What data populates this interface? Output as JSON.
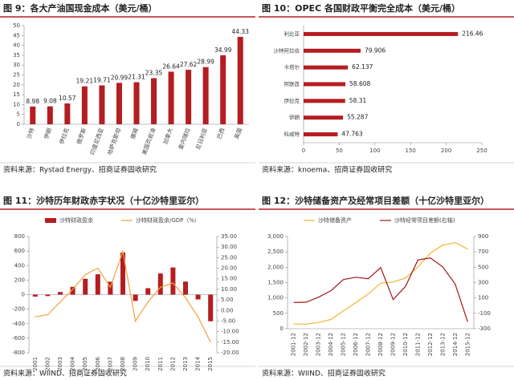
{
  "chart_data": [
    {
      "type": "bar",
      "title": "图 9：各大产油国现金成本（美元/桶）",
      "source": "资料来源：Rystad Energy、招商证券固收研究",
      "categories": [
        "沙特",
        "伊朗",
        "伊拉克",
        "俄罗斯",
        "印度尼西亚",
        "哈萨克斯坦",
        "挪威",
        "美国页岩油",
        "加拿大",
        "委内瑞拉",
        "尼日利亚",
        "巴西",
        "英国"
      ],
      "values": [
        8.98,
        9.08,
        10.57,
        19.21,
        19.71,
        20.99,
        21.31,
        23.35,
        26.64,
        27.62,
        28.99,
        34.99,
        44.33
      ],
      "color": "#b51d22",
      "ylim": [
        0,
        50
      ],
      "yticks": [
        0,
        5,
        10,
        15,
        20,
        25,
        30,
        35,
        40,
        45,
        50
      ],
      "grid": false
    },
    {
      "type": "bar",
      "horizontal": true,
      "title": "图 10：OPEC 各国财政平衡完全成本（美元/桶）",
      "source": "资料来源：knoema、招商证券固收研究",
      "categories": [
        "利比亚",
        "沙特阿拉伯",
        "卡塔尔",
        "阿联酋",
        "伊拉克",
        "伊朗",
        "科威特"
      ],
      "values": [
        216.46,
        79.906,
        62.137,
        58.608,
        58.31,
        55.287,
        47.763
      ],
      "color": "#b51d22",
      "xlim": [
        0,
        250
      ],
      "xticks": [
        0,
        50,
        100,
        150,
        200,
        250
      ],
      "grid": false
    },
    {
      "type": "combo",
      "title": "图 11：沙特历年财政赤字状况（十亿沙特里亚尔）",
      "source": "资料来源：WIIND、招商证券固收研究",
      "categories": [
        "2001",
        "2002",
        "2003",
        "2004",
        "2005",
        "2006",
        "2007",
        "2008",
        "2009",
        "2010",
        "2011",
        "2012",
        "2013",
        "2014",
        "2015"
      ],
      "series": [
        {
          "name": "沙特财政盈余",
          "type": "bar",
          "color": "#b51d22",
          "values": [
            -27,
            -20,
            36,
            107,
            218,
            280,
            178,
            580,
            -87,
            88,
            291,
            374,
            180,
            -66,
            -367
          ]
        },
        {
          "name": "沙特财政盈余/GDP（%）",
          "type": "line",
          "axis": "y2",
          "color": "#f0a040",
          "values": [
            -3,
            -2,
            4,
            10,
            17,
            20,
            11,
            28,
            -5,
            4,
            11,
            13,
            6,
            -3,
            -15
          ]
        }
      ],
      "ylim": [
        -800,
        800
      ],
      "yticks": [
        -800,
        -600,
        -400,
        -200,
        0,
        200,
        400,
        600,
        800
      ],
      "y2lim": [
        -20,
        35
      ],
      "y2ticks": [
        {
          "value": -20,
          "label": "-20.00"
        },
        {
          "value": -15,
          "label": "-15.00"
        },
        {
          "value": -10,
          "label": "-10.00"
        },
        {
          "value": -5,
          "label": "-5.00"
        },
        {
          "value": 0,
          "label": "0.00"
        },
        {
          "value": 5,
          "label": "5.00"
        },
        {
          "value": 10,
          "label": "10.00"
        },
        {
          "value": 15,
          "label": "15.00"
        },
        {
          "value": 20,
          "label": "20.00"
        },
        {
          "value": 25,
          "label": "25.00"
        },
        {
          "value": 30,
          "label": "30.00"
        },
        {
          "value": 35,
          "label": "35.00"
        }
      ],
      "grid": false,
      "legend": "top"
    },
    {
      "type": "line",
      "title": "图 12：沙特储备资产及经常项目差额（十亿沙特里亚尔）",
      "source": "资料来源：WIIND、招商证券固收研究",
      "categories": [
        "2001-12",
        "2002-12",
        "2003-12",
        "2004-12",
        "2005-12",
        "2006-12",
        "2007-12",
        "2008-12",
        "2009-12",
        "2010-12",
        "2011-12",
        "2012-12",
        "2013-12",
        "2014-12",
        "2015-12"
      ],
      "series": [
        {
          "name": "沙特储备资产",
          "color": "#f5b32e",
          "values": [
            150,
            150,
            200,
            300,
            580,
            850,
            1130,
            1480,
            1520,
            1650,
            2010,
            2460,
            2720,
            2800,
            2590
          ]
        },
        {
          "name": "沙特经常项目差额(右轴)",
          "axis": "y2",
          "color": "#a3161c",
          "values": [
            40,
            45,
            110,
            195,
            340,
            370,
            350,
            495,
            80,
            250,
            595,
            620,
            505,
            280,
            -210
          ]
        }
      ],
      "ylim": [
        0,
        3000
      ],
      "yticks": [
        0,
        500,
        {
          "value": 1000,
          "label": "1,000"
        },
        {
          "value": 1500,
          "label": "1,500"
        },
        {
          "value": 2000,
          "label": "2,000"
        },
        {
          "value": 2500,
          "label": "2,500"
        },
        {
          "value": 3000,
          "label": "3,000"
        }
      ],
      "y2lim": [
        -300,
        900
      ],
      "y2ticks": [
        -300,
        -100,
        100,
        300,
        500,
        700,
        900
      ],
      "grid": false,
      "legend": "top"
    }
  ]
}
